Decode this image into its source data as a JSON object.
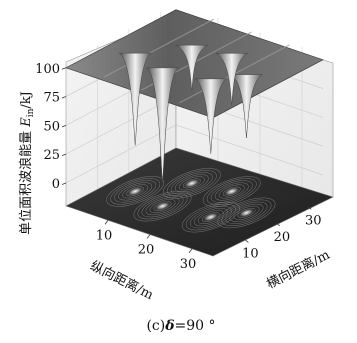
{
  "chart_data": {
    "type": "surface3d",
    "title": "",
    "zlabel_main": "单位面积波浪能量 ",
    "zlabel_symbol": "E",
    "zlabel_sub": "in",
    "zlabel_unit": "/kJ",
    "xlabel": "纵向距离/m",
    "ylabel": "横向距离/m",
    "z_ticks": [
      "0",
      "25",
      "50",
      "75",
      "100"
    ],
    "x_ticks": [
      "10",
      "20",
      "30"
    ],
    "y_ticks": [
      "10",
      "20",
      "30"
    ],
    "x_range": [
      0,
      35
    ],
    "y_range": [
      0,
      35
    ],
    "z_range": [
      -20,
      105
    ],
    "caption_prefix": "(c)",
    "caption_symbol": "δ",
    "caption_value": "=90 °",
    "surface_baseline": 100,
    "troughs": [
      {
        "x": 6,
        "y": 14,
        "min": 20
      },
      {
        "x": 14,
        "y": 12,
        "min": 0
      },
      {
        "x": 24,
        "y": 14,
        "min": 35
      },
      {
        "x": 28,
        "y": 20,
        "min": 45
      },
      {
        "x": 12,
        "y": 24,
        "min": 60
      },
      {
        "x": 20,
        "y": 26,
        "min": 55
      }
    ],
    "grid": true,
    "contour_projection": true
  }
}
